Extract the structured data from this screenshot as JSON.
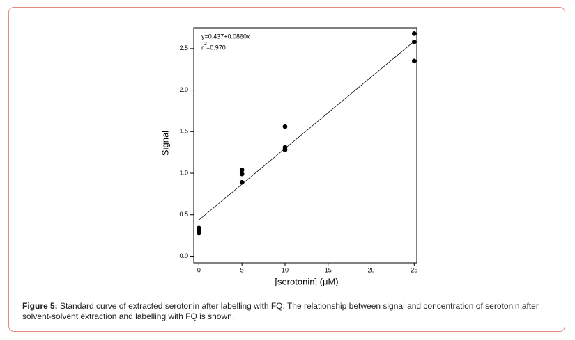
{
  "chart_data": {
    "type": "scatter",
    "annotation": "y=0.437+0.0860x",
    "r_squared_label": {
      "text": "r",
      "superscript": "2",
      "value_text": "=0.970"
    },
    "x_label": "[serotonin] (μM)",
    "y_label": "Signal",
    "series": [
      {
        "color": "#000000",
        "x": [
          0,
          0,
          0,
          5,
          5,
          5,
          10,
          10,
          10,
          25,
          25,
          25
        ],
        "values": [
          0.34,
          0.31,
          0.28,
          1.04,
          0.99,
          0.89,
          1.56,
          1.31,
          1.28,
          2.68,
          2.58,
          2.35
        ]
      }
    ],
    "fit_line": {
      "color": "#000000",
      "x": [
        0,
        25
      ],
      "values": [
        0.437,
        2.587
      ]
    },
    "xlim": [
      -0.6,
      25.3
    ],
    "ylim": [
      -0.08,
      2.75
    ],
    "xticks": [
      0,
      5,
      10,
      15,
      20,
      25
    ],
    "yticks": [
      {
        "value": 0,
        "label": "0.0"
      },
      0.5,
      {
        "value": 1,
        "label": "1.0"
      },
      1.5,
      {
        "value": 2,
        "label": "2.0"
      },
      2.5
    ]
  },
  "caption": {
    "label": "Figure 5:",
    "text": " Standard curve of extracted serotonin after labelling with FQ: The relationship between signal and concentration of serotonin after solvent-solvent extraction and labelling with FQ is shown."
  }
}
